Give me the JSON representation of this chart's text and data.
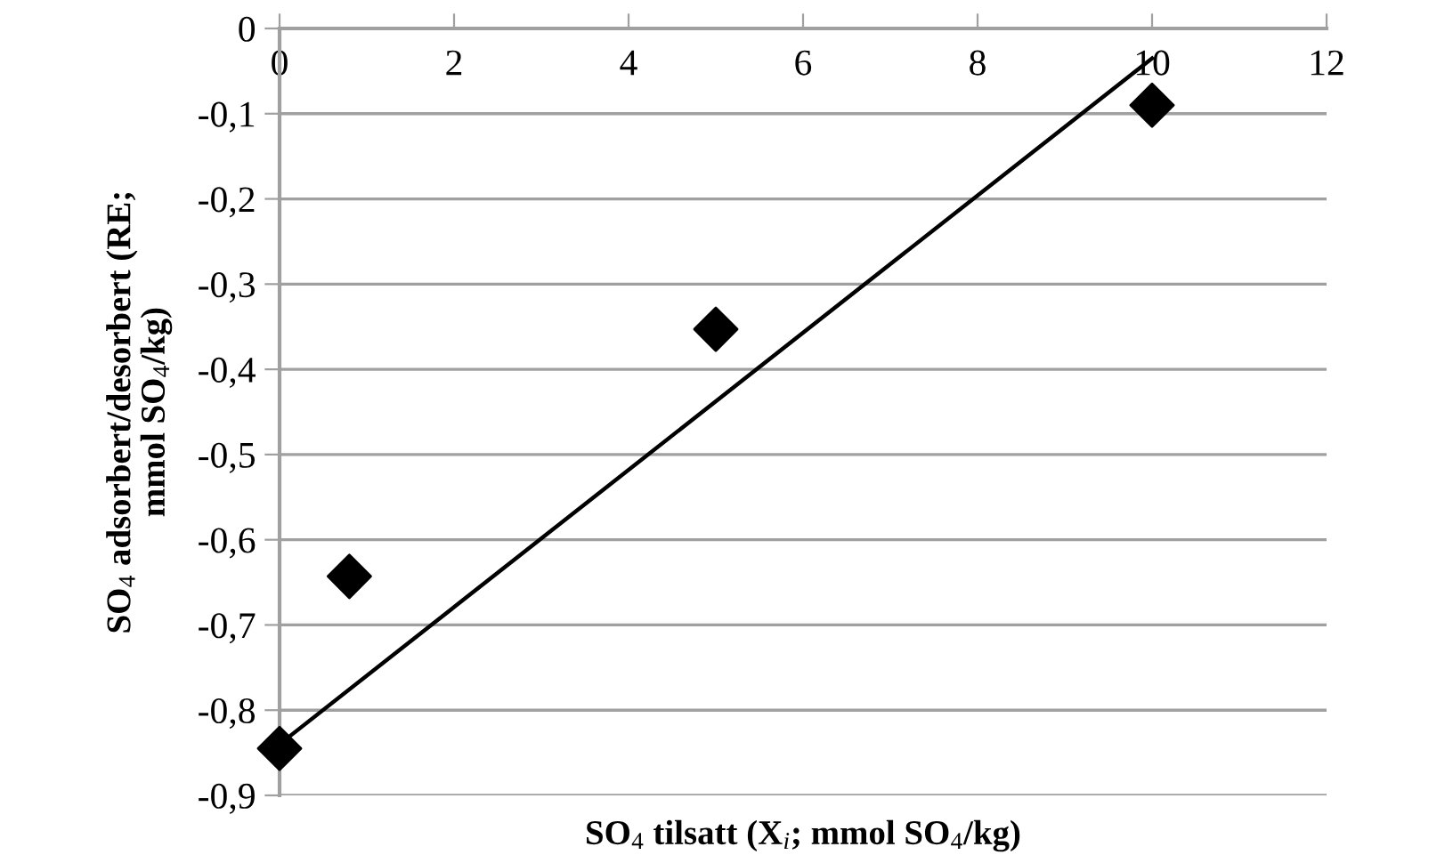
{
  "chart_data": {
    "type": "scatter",
    "xlabel": "SO$_{4}$ tilsatt (X$_{i}$; mmol SO$_{4}$/kg)",
    "ylabel": "SO$_{4}$ adsorbert/desorbert (RE;\nmmol SO$_{4}$/kg)",
    "series": [
      {
        "color": "#000000",
        "marker": "diamond",
        "x": [
          0,
          0.8,
          5,
          10
        ],
        "values": [
          -0.845,
          -0.643,
          -0.353,
          -0.09
        ]
      },
      {
        "type": "line",
        "color": "#000000",
        "marker": "none",
        "line_style": "solid",
        "x": [
          0,
          10
        ],
        "values": [
          -0.84,
          -0.035
        ]
      }
    ],
    "xlim": [
      0,
      12
    ],
    "xticks": [
      0,
      2,
      4,
      6,
      8,
      10,
      12
    ],
    "ylim": [
      -0.9,
      0
    ],
    "yticks": [
      0,
      {
        "value": -0.1,
        "label": "-0,1"
      },
      {
        "value": -0.2,
        "label": "-0,2"
      },
      {
        "value": -0.3,
        "label": "-0,3"
      },
      {
        "value": -0.4,
        "label": "-0,4"
      },
      {
        "value": -0.5,
        "label": "-0,5"
      },
      {
        "value": -0.6,
        "label": "-0,6"
      },
      {
        "value": -0.7,
        "label": "-0,7"
      },
      {
        "value": -0.8,
        "label": "-0,8"
      },
      {
        "value": -0.9,
        "label": "-0,9"
      }
    ],
    "grid": "y",
    "legend": false
  }
}
